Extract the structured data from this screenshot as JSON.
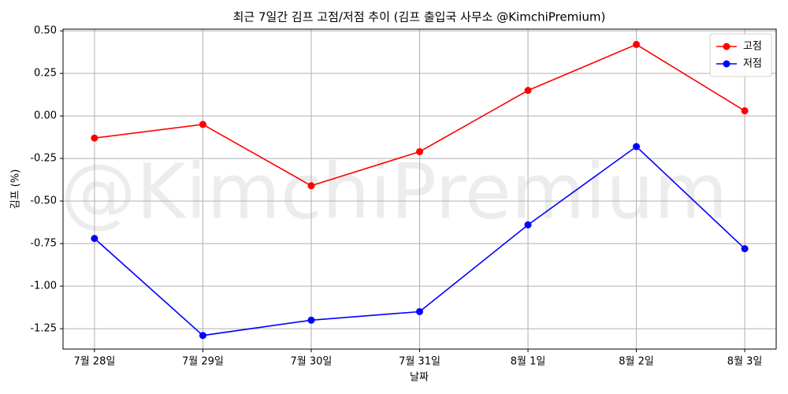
{
  "chart_data": {
    "type": "line",
    "title": "최근 7일간 김프 고점/저점 추이 (김프 출입국 사무소 @KimchiPremium)",
    "xlabel": "날짜",
    "ylabel": "김프 (%)",
    "watermark": "@KimchiPremium",
    "categories": [
      "7월 28일",
      "7월 29일",
      "7월 30일",
      "7월 31일",
      "8월 1일",
      "8월 2일",
      "8월 3일"
    ],
    "series": [
      {
        "name": "고점",
        "color": "#ff0000",
        "values": [
          -0.13,
          -0.05,
          -0.41,
          -0.21,
          0.15,
          0.42,
          0.03
        ]
      },
      {
        "name": "저점",
        "color": "#0000ff",
        "values": [
          -0.72,
          -1.29,
          -1.2,
          -1.15,
          -0.64,
          -0.18,
          -0.78
        ]
      }
    ],
    "ylim": [
      -1.37,
      0.51
    ],
    "yticks": [
      {
        "value": 0.5,
        "label": "0.50"
      },
      0.25,
      {
        "value": 0,
        "label": "0.00"
      },
      -0.25,
      {
        "value": -0.5,
        "label": "-0.50"
      },
      -0.75,
      {
        "value": -1,
        "label": "-1.00"
      },
      -1.25
    ],
    "grid": true,
    "legend": "upper right"
  }
}
